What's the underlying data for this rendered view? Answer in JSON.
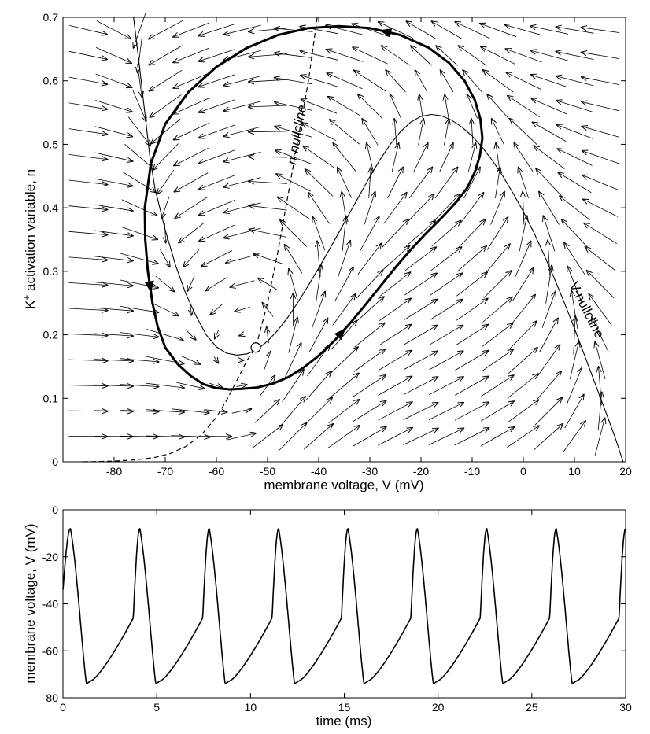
{
  "chart_data": [
    {
      "type": "line",
      "subtype": "phase-plane",
      "xlabel": "membrane voltage, V (mV)",
      "ylabel_main": "K",
      "ylabel_sup": "+",
      "ylabel_rest": " activation variable, n",
      "xlim": [
        -90,
        20
      ],
      "ylim": [
        0,
        0.7
      ],
      "xticks": [
        -80,
        -70,
        -60,
        -50,
        -40,
        -30,
        -20,
        -10,
        0,
        10,
        20
      ],
      "yticks": [
        0,
        0.1,
        0.2,
        0.3,
        0.4,
        0.5,
        0.6,
        0.7
      ],
      "ytick_labels": [
        "0",
        "0.1",
        "0.2",
        "0.3",
        "0.4",
        "0.5",
        "0.6",
        "0.7"
      ],
      "annotations": {
        "n_nullcline": "n-nullcline",
        "v_nullcline": "V-nullcline"
      },
      "series": [
        {
          "role": "v-nullcline",
          "style": "solid-thin",
          "x": [
            -76.2,
            -75,
            -74,
            -73,
            -72,
            -70,
            -68,
            -66,
            -64,
            -62,
            -60,
            -58,
            -56,
            -54,
            -52,
            -50,
            -48,
            -46,
            -44,
            -42,
            -40,
            -38,
            -36,
            -34,
            -32,
            -30,
            -28,
            -26,
            -24,
            -22,
            -20,
            -18,
            -16,
            -14,
            -12,
            -10,
            -8,
            -6,
            -4,
            -2,
            0,
            2,
            4,
            6,
            8,
            10,
            12,
            14,
            16,
            18,
            19.5
          ],
          "y": [
            0.7,
            0.62,
            0.55,
            0.48,
            0.43,
            0.365,
            0.31,
            0.265,
            0.23,
            0.2,
            0.181,
            0.171,
            0.168,
            0.17,
            0.177,
            0.19,
            0.207,
            0.228,
            0.252,
            0.278,
            0.305,
            0.333,
            0.362,
            0.391,
            0.42,
            0.449,
            0.476,
            0.5,
            0.52,
            0.535,
            0.544,
            0.547,
            0.545,
            0.538,
            0.527,
            0.513,
            0.495,
            0.474,
            0.45,
            0.423,
            0.394,
            0.362,
            0.327,
            0.29,
            0.251,
            0.21,
            0.167,
            0.124,
            0.081,
            0.037,
            0.0
          ]
        },
        {
          "role": "n-nullcline",
          "style": "dashed",
          "x": [
            -86,
            -80,
            -76,
            -72,
            -69,
            -66,
            -63,
            -60,
            -58,
            -56,
            -54,
            -52.3,
            -50,
            -48,
            -46,
            -44,
            -42,
            -40.3
          ],
          "y": [
            0.0,
            0.001,
            0.003,
            0.007,
            0.013,
            0.024,
            0.042,
            0.07,
            0.097,
            0.128,
            0.16,
            0.18,
            0.25,
            0.33,
            0.42,
            0.51,
            0.6,
            0.7
          ]
        },
        {
          "role": "limit-cycle",
          "style": "solid-thick",
          "x": [
            -55,
            -52,
            -49,
            -46,
            -43,
            -40,
            -37,
            -34,
            -31,
            -28,
            -25,
            -22,
            -19,
            -16,
            -13,
            -11,
            -9.5,
            -8.5,
            -8,
            -8.4,
            -9.5,
            -11.5,
            -14.5,
            -18.5,
            -24,
            -30,
            -36,
            -42,
            -48,
            -54,
            -60,
            -65.5,
            -70,
            -72.8,
            -74,
            -73.9,
            -73.4,
            -72.5,
            -71.5,
            -70,
            -67.5,
            -65,
            -62.5,
            -60,
            -57.5,
            -55
          ],
          "y": [
            0.115,
            0.117,
            0.123,
            0.133,
            0.148,
            0.167,
            0.19,
            0.217,
            0.246,
            0.276,
            0.306,
            0.334,
            0.36,
            0.384,
            0.41,
            0.431,
            0.456,
            0.482,
            0.51,
            0.54,
            0.57,
            0.6,
            0.628,
            0.652,
            0.672,
            0.683,
            0.686,
            0.683,
            0.672,
            0.652,
            0.622,
            0.582,
            0.532,
            0.47,
            0.4,
            0.35,
            0.3,
            0.25,
            0.213,
            0.18,
            0.153,
            0.135,
            0.122,
            0.116,
            0.114,
            0.115
          ]
        }
      ],
      "fixed_point": {
        "x": -52.3,
        "y": 0.18
      },
      "vector_field_points": [
        -85,
        -80,
        -75,
        -70,
        -65,
        -60,
        -55,
        -50,
        -45,
        -40,
        -35,
        -30,
        -25,
        -20,
        -15,
        -10,
        -5,
        0,
        5,
        10,
        15,
        20
      ],
      "vector_field_levels": [
        0.68,
        0.64,
        0.6,
        0.56,
        0.52,
        0.48,
        0.44,
        0.4,
        0.36,
        0.32,
        0.28,
        0.24,
        0.2,
        0.16,
        0.12,
        0.08,
        0.04,
        0.0
      ]
    },
    {
      "type": "line",
      "xlabel": "time (ms)",
      "ylabel": "membrane voltage, V (mV)",
      "xlim": [
        0,
        30
      ],
      "ylim": [
        -80,
        0
      ],
      "xticks": [
        0,
        5,
        10,
        15,
        20,
        25,
        30
      ],
      "yticks": [
        0,
        -20,
        -40,
        -60,
        -80
      ],
      "period_ms": 3.7,
      "first_spike_peak_ms": 0.4,
      "spike_peak_mV": -8,
      "trough_mV": -74,
      "start_mV": -34
    }
  ]
}
